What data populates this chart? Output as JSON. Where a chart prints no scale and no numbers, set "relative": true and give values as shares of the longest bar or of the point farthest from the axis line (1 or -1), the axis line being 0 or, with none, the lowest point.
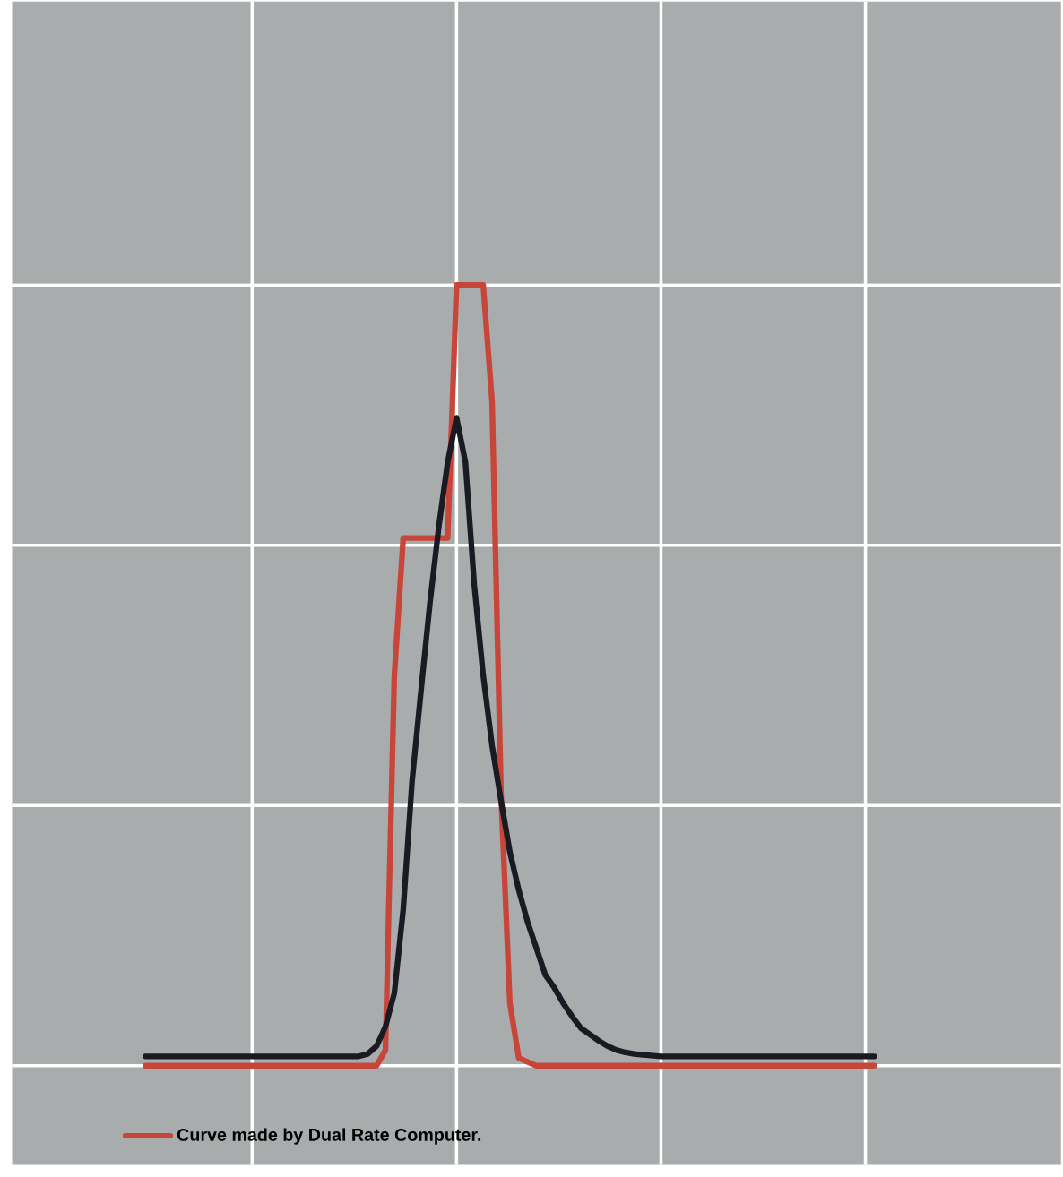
{
  "chart_data": {
    "type": "line",
    "relative": true,
    "grid": true,
    "legend": "bottom left",
    "marker": "none",
    "categories": [
      null,
      null,
      null,
      null,
      null,
      null,
      null,
      null,
      null,
      null,
      null,
      null,
      null,
      null,
      null,
      null,
      null,
      null,
      null,
      null,
      null,
      null,
      null,
      null,
      null,
      null,
      null,
      null,
      null,
      null,
      null,
      null,
      null,
      null,
      null,
      null,
      null,
      null,
      null,
      null,
      null,
      null,
      null,
      null,
      null,
      null,
      null,
      null,
      null,
      null,
      null,
      null,
      null,
      null,
      null,
      null,
      null,
      null,
      null,
      null,
      null,
      null,
      null,
      null,
      null,
      null,
      null,
      null,
      null,
      null,
      null,
      null,
      null,
      null,
      null,
      null,
      null,
      null,
      null,
      null,
      null,
      null,
      null
    ],
    "series": [
      {
        "name": "Curve made by Dual Rate Computer.",
        "color": "#c8453a",
        "values": [
          0,
          0,
          0,
          0,
          0,
          0,
          0,
          0,
          0,
          0,
          0,
          0,
          0,
          0,
          0,
          0,
          0,
          0,
          0,
          0,
          0,
          0,
          0,
          0,
          0,
          0,
          0,
          0.02,
          0.5,
          0.676,
          0.676,
          0.676,
          0.676,
          0.676,
          0.676,
          1,
          1,
          1,
          1,
          0.85,
          0.35,
          0.08,
          0.01,
          0.005,
          0,
          0,
          0,
          0,
          0,
          0,
          0,
          0,
          0,
          0,
          0,
          0,
          0,
          0,
          0,
          0,
          0,
          0,
          0,
          0,
          0,
          0,
          0,
          0,
          0,
          0,
          0,
          0,
          0,
          0,
          0,
          0,
          0,
          0,
          0,
          0,
          0,
          0,
          0
        ]
      },
      {
        "color": "#1a1a22",
        "values": [
          0.012,
          0.012,
          0.012,
          0.012,
          0.012,
          0.012,
          0.012,
          0.012,
          0.012,
          0.012,
          0.012,
          0.012,
          0.012,
          0.012,
          0.012,
          0.012,
          0.012,
          0.012,
          0.012,
          0.012,
          0.012,
          0.012,
          0.012,
          0.012,
          0.012,
          0.015,
          0.025,
          0.05,
          0.093,
          0.2,
          0.365,
          0.48,
          0.592,
          0.69,
          0.773,
          0.83,
          0.773,
          0.615,
          0.5,
          0.41,
          0.34,
          0.274,
          0.225,
          0.184,
          0.15,
          0.116,
          0.1,
          0.08,
          0.063,
          0.048,
          0.04,
          0.032,
          0.025,
          0.02,
          0.017,
          0.015,
          0.014,
          0.013,
          0.012,
          0.012,
          0.012,
          0.012,
          0.012,
          0.012,
          0.012,
          0.012,
          0.012,
          0.012,
          0.012,
          0.012,
          0.012,
          0.012,
          0.012,
          0.012,
          0.012,
          0.012,
          0.012,
          0.012,
          0.012,
          0.012,
          0.012,
          0.012,
          0.012
        ]
      }
    ]
  }
}
